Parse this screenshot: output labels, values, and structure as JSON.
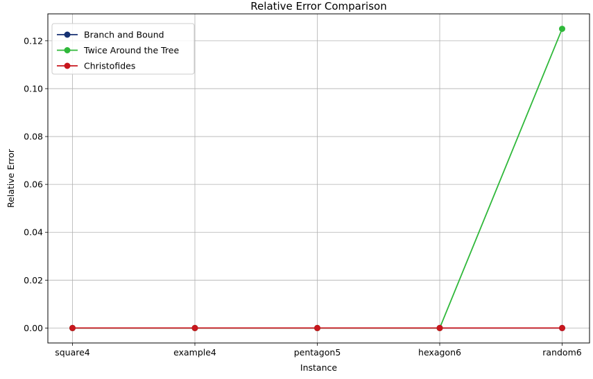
{
  "chart_data": {
    "type": "line",
    "title": "Relative Error Comparison",
    "xlabel": "Instance",
    "ylabel": "Relative Error",
    "categories": [
      "square4",
      "example4",
      "pentagon5",
      "hexagon6",
      "random6"
    ],
    "ylim": [
      -0.00625,
      0.13125
    ],
    "yticks": [
      0.0,
      0.02,
      0.04,
      0.06,
      0.08,
      0.1,
      0.12
    ],
    "ytick_labels": [
      "0.00",
      "0.02",
      "0.04",
      "0.06",
      "0.08",
      "0.10",
      "0.12"
    ],
    "grid": true,
    "legend_position": "top-left",
    "series": [
      {
        "name": "Branch and Bound",
        "color": "#163172",
        "marker": "circle",
        "values": [
          0.0,
          0.0,
          0.0,
          0.0,
          0.0
        ]
      },
      {
        "name": "Twice Around the Tree",
        "color": "#2fb83a",
        "marker": "circle",
        "values": [
          0.0,
          0.0,
          0.0,
          0.0,
          0.125
        ]
      },
      {
        "name": "Christofides",
        "color": "#c8161d",
        "marker": "circle",
        "values": [
          0.0,
          0.0,
          0.0,
          0.0,
          0.0
        ]
      }
    ]
  }
}
